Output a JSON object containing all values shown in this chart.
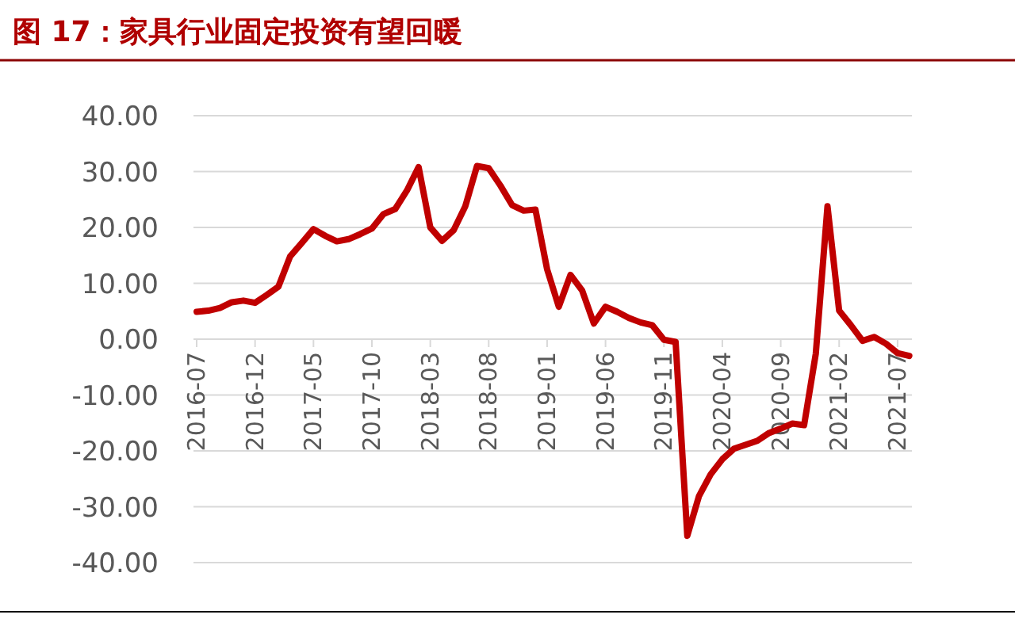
{
  "chart_data": {
    "type": "line",
    "title": "图 17：家具行业固定投资有望回暖",
    "categories": [
      "2016-07",
      null,
      null,
      null,
      null,
      "2016-12",
      null,
      null,
      null,
      null,
      "2017-05",
      null,
      null,
      null,
      null,
      "2017-10",
      null,
      null,
      null,
      null,
      "2018-03",
      null,
      null,
      null,
      null,
      "2018-08",
      null,
      null,
      null,
      null,
      "2019-01",
      null,
      null,
      null,
      null,
      "2019-06",
      null,
      null,
      null,
      null,
      "2019-11",
      null,
      null,
      null,
      null,
      "2020-04",
      null,
      null,
      null,
      null,
      "2020-09",
      null,
      null,
      null,
      null,
      "2021-02",
      null,
      null,
      null,
      null,
      "2021-07",
      null
    ],
    "values": [
      4.9,
      5.1,
      5.6,
      6.6,
      6.9,
      6.5,
      7.9,
      9.4,
      14.8,
      17.2,
      19.7,
      18.5,
      17.5,
      17.9,
      18.8,
      19.8,
      22.4,
      23.3,
      26.6,
      30.8,
      20.0,
      17.6,
      19.5,
      23.8,
      31.0,
      30.6,
      27.5,
      24.0,
      23.0,
      23.2,
      12.5,
      5.8,
      11.5,
      8.7,
      2.8,
      5.8,
      4.9,
      3.8,
      3.0,
      2.5,
      -0.1,
      -0.5,
      -35.2,
      -28.1,
      -24.2,
      -21.5,
      -19.6,
      -18.9,
      -18.2,
      -16.8,
      -16.0,
      -15.1,
      -15.4,
      -2.6,
      23.8,
      5.1,
      2.5,
      -0.3,
      0.4,
      -0.8,
      -2.5,
      -3.0
    ],
    "color": "#c00000",
    "ylim": [
      -40,
      40
    ],
    "yticks": [
      {
        "value": -40,
        "label": "-40.00"
      },
      {
        "value": -30,
        "label": "-30.00"
      },
      {
        "value": -20,
        "label": "-20.00"
      },
      {
        "value": -10,
        "label": "-10.00"
      },
      {
        "value": 0,
        "label": "0.00"
      },
      {
        "value": 10,
        "label": "10.00"
      },
      {
        "value": 20,
        "label": "20.00"
      },
      {
        "value": 30,
        "label": "30.00"
      },
      {
        "value": 40,
        "label": "40.00"
      }
    ],
    "grid": "y"
  }
}
